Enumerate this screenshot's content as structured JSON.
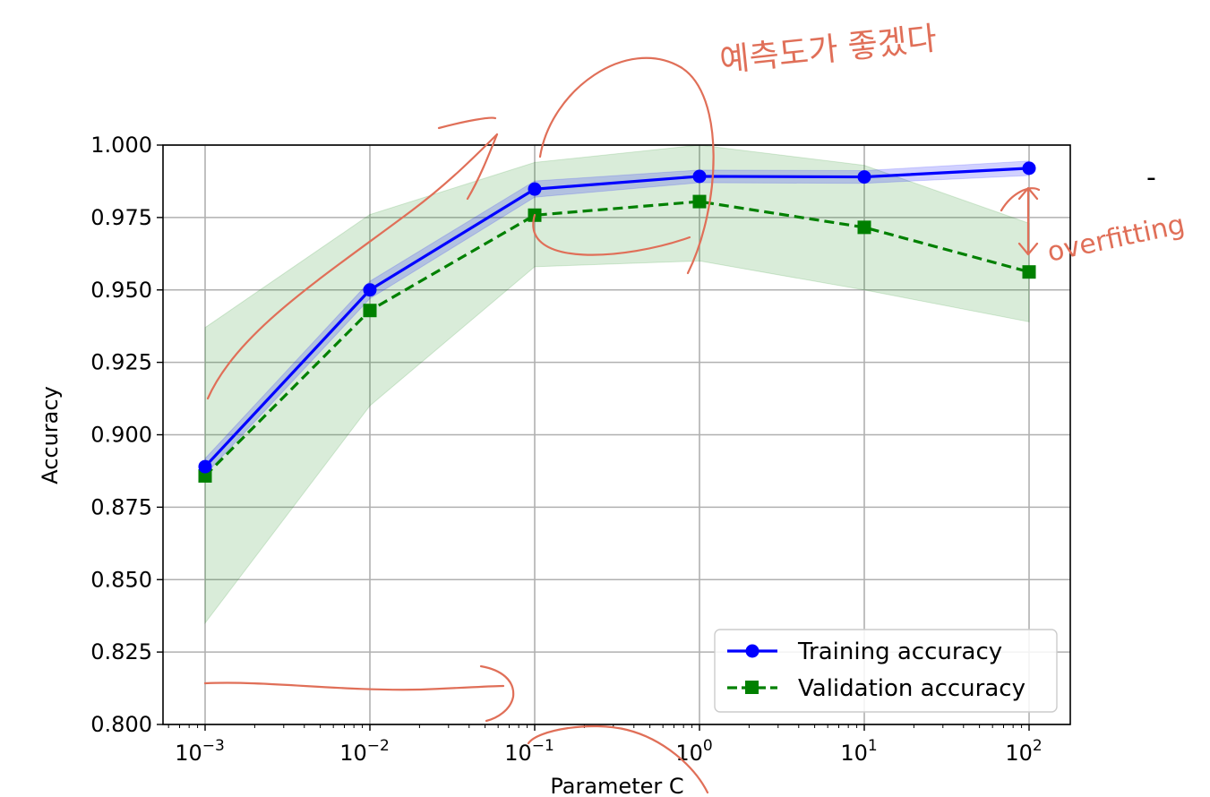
{
  "chart_data": {
    "type": "line",
    "xscale": "log",
    "x": [
      0.001,
      0.01,
      0.1,
      1,
      10,
      100
    ],
    "xticks": [
      {
        "base": "10",
        "exp": "−3"
      },
      {
        "base": "10",
        "exp": "−2"
      },
      {
        "base": "10",
        "exp": "−1"
      },
      {
        "base": "10",
        "exp": "0"
      },
      {
        "base": "10",
        "exp": "1"
      },
      {
        "base": "10",
        "exp": "2"
      }
    ],
    "yticks": [
      "0.800",
      "0.825",
      "0.850",
      "0.875",
      "0.900",
      "0.925",
      "0.950",
      "0.975",
      "1.000"
    ],
    "ylim": [
      0.8,
      1.0
    ],
    "xlabel": "Parameter C",
    "ylabel": "Accuracy",
    "grid": true,
    "legend_position": "lower-right",
    "series": [
      {
        "name": "Training accuracy",
        "color": "#0000ff",
        "marker": "circle",
        "linestyle": "solid",
        "values": [
          0.889,
          0.95,
          0.9848,
          0.9892,
          0.989,
          0.992
        ],
        "band_lower": [
          0.8862,
          0.947,
          0.982,
          0.987,
          0.9868,
          0.9895
        ],
        "band_upper": [
          0.8918,
          0.953,
          0.9876,
          0.9914,
          0.9912,
          0.9945
        ]
      },
      {
        "name": "Validation accuracy",
        "color": "#008000",
        "marker": "square",
        "linestyle": "dashed",
        "values": [
          0.8858,
          0.9429,
          0.9758,
          0.9805,
          0.9716,
          0.9562
        ],
        "band_lower": [
          0.835,
          0.91,
          0.958,
          0.96,
          0.95,
          0.939
        ],
        "band_upper": [
          0.937,
          0.976,
          0.994,
          1.0,
          0.993,
          0.973
        ]
      }
    ]
  },
  "annotations": {
    "handwritten_korean": "예측도가 좋겠다",
    "handwritten_overfitting": "overfitting",
    "dash_mark": "-"
  }
}
